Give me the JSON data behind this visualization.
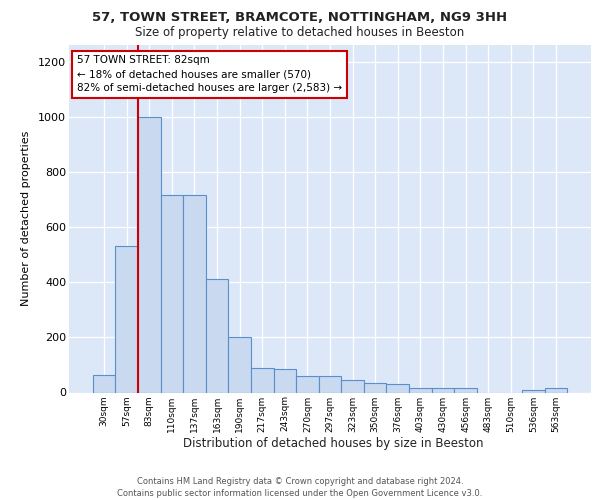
{
  "title1": "57, TOWN STREET, BRAMCOTE, NOTTINGHAM, NG9 3HH",
  "title2": "Size of property relative to detached houses in Beeston",
  "xlabel": "Distribution of detached houses by size in Beeston",
  "ylabel": "Number of detached properties",
  "bin_labels": [
    "30sqm",
    "57sqm",
    "83sqm",
    "110sqm",
    "137sqm",
    "163sqm",
    "190sqm",
    "217sqm",
    "243sqm",
    "270sqm",
    "297sqm",
    "323sqm",
    "350sqm",
    "376sqm",
    "403sqm",
    "430sqm",
    "456sqm",
    "483sqm",
    "510sqm",
    "536sqm",
    "563sqm"
  ],
  "bar_heights": [
    65,
    530,
    1000,
    715,
    715,
    410,
    200,
    90,
    85,
    60,
    60,
    45,
    35,
    30,
    15,
    15,
    15,
    0,
    0,
    10,
    15
  ],
  "bar_color": "#c9d9f0",
  "bar_edge_color": "#5b8fc9",
  "subject_line_color": "#cc0000",
  "annotation_line1": "57 TOWN STREET: 82sqm",
  "annotation_line2": "← 18% of detached houses are smaller (570)",
  "annotation_line3": "82% of semi-detached houses are larger (2,583) →",
  "ylim": [
    0,
    1260
  ],
  "yticks": [
    0,
    200,
    400,
    600,
    800,
    1000,
    1200
  ],
  "background_color": "#dce8f8",
  "footnote": "Contains HM Land Registry data © Crown copyright and database right 2024.\nContains public sector information licensed under the Open Government Licence v3.0."
}
